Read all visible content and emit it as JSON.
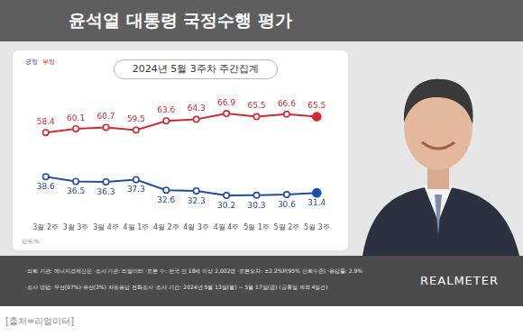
{
  "chart_data": {
    "type": "line",
    "title": "윤석열 대통령 국정수행 평가",
    "subtitle": "2024년 5월 3주차 주간집계",
    "unit_note": "단위:%",
    "categories": [
      "3월 2주",
      "3월 3주",
      "3월 4주",
      "4월 1주",
      "4월 2주",
      "4월 3주",
      "4월 4주",
      "5월 1주",
      "5월 2주",
      "5월 3주"
    ],
    "series": [
      {
        "name": "긍정",
        "color": "#1f4ea6",
        "values": [
          38.6,
          36.5,
          36.3,
          37.3,
          32.6,
          32.3,
          30.2,
          30.3,
          30.6,
          31.4
        ]
      },
      {
        "name": "부정",
        "color": "#d42a2f",
        "values": [
          58.4,
          60.1,
          60.7,
          59.5,
          63.6,
          64.3,
          66.9,
          65.5,
          66.6,
          65.5
        ]
      }
    ],
    "ylim": [
      20,
      75
    ],
    "grid": false,
    "legend": "top-left",
    "data_labels": true,
    "tick_labels": "x",
    "marker": "circle"
  },
  "page": {
    "footer": [
      "·의뢰 기관: 에너지경제신문 ·조사 기관: 리얼미터 ·표본 수: 전국 만 18세 이상 2,002명 ·표본오차: ±2.2%P(95% 신뢰수준) ·응답률: 2.9%",
      "·조사 방법: 무선(97%)·유선(3%) 자동응답 전화조사 ·조사 기간: 2024년 5월 13일(월) ~ 5월 17일(금) (공휴일 제외 4일간)"
    ],
    "logo": "REALMETER",
    "caption": "[출처=리얼미터]"
  }
}
